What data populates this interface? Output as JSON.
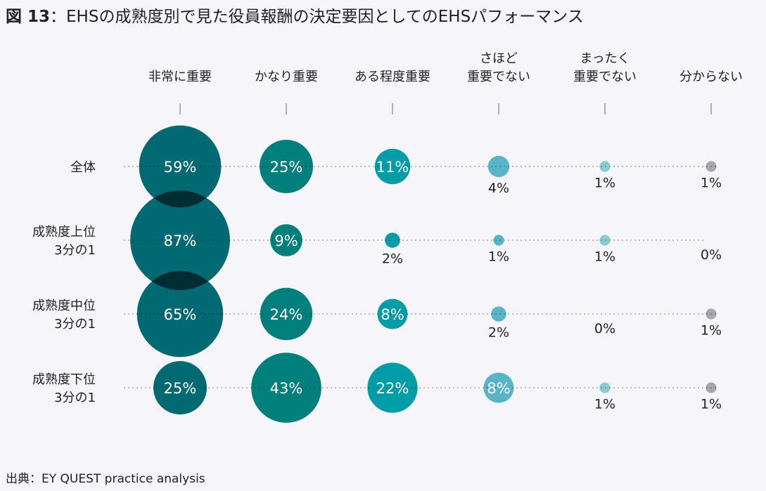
{
  "title_prefix": "図 13",
  "title_text": "：EHSの成熟度別で見た役員報酬の決定要因としてのEHSパフォーマンス",
  "source": "出典：EY QUEST practice analysis",
  "chart_data": {
    "type": "bubble",
    "title": "図13：EHSの成熟度別で見た役員報酬の決定要因としてのEHSパフォーマンス",
    "columns": [
      {
        "label": [
          "非常に重要"
        ],
        "color": "#006d73"
      },
      {
        "label": [
          "かなり重要"
        ],
        "color": "#00847f"
      },
      {
        "label": [
          "ある程度重要"
        ],
        "color": "#00a3aa"
      },
      {
        "label": [
          "さほど",
          "重要でない"
        ],
        "color": "#5bbccb"
      },
      {
        "label": [
          "まったく",
          "重要でない"
        ],
        "color": "#8fd4d6"
      },
      {
        "label": [
          "分からない"
        ],
        "color": "#adadb2"
      }
    ],
    "rows": [
      {
        "label": [
          "全体"
        ],
        "values": [
          59,
          25,
          11,
          4,
          1,
          1
        ]
      },
      {
        "label": [
          "成熟度上位",
          "3分の1"
        ],
        "values": [
          87,
          9,
          2,
          1,
          1,
          0
        ]
      },
      {
        "label": [
          "成熟度中位",
          "3分の1"
        ],
        "values": [
          65,
          24,
          8,
          2,
          0,
          1
        ]
      },
      {
        "label": [
          "成熟度下位",
          "3分の1"
        ],
        "values": [
          25,
          43,
          22,
          8,
          1,
          1
        ]
      }
    ],
    "unit": "%"
  }
}
